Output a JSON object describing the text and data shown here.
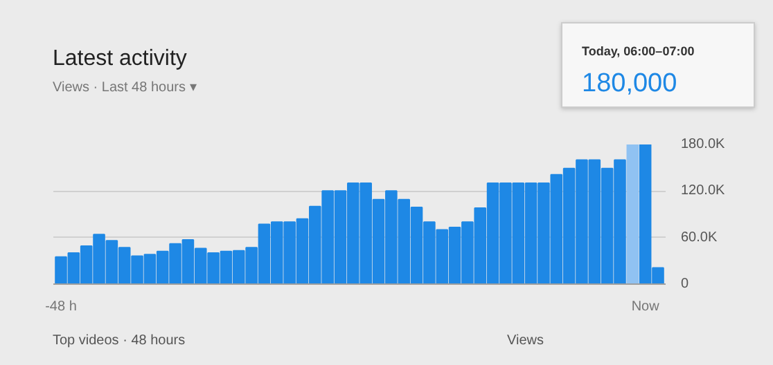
{
  "chart_data": {
    "type": "bar",
    "title": "Latest activity",
    "subtitle": "Views · Last 48 hours ▾",
    "categories": [
      "-48 h",
      null,
      null,
      null,
      null,
      null,
      null,
      null,
      null,
      null,
      null,
      null,
      null,
      null,
      null,
      null,
      null,
      null,
      null,
      null,
      null,
      null,
      null,
      null,
      null,
      null,
      null,
      null,
      null,
      null,
      null,
      null,
      null,
      null,
      null,
      null,
      null,
      null,
      null,
      null,
      null,
      null,
      null,
      null,
      null,
      null,
      "Now",
      null
    ],
    "values": [
      35000,
      40000,
      49000,
      64000,
      56000,
      47000,
      36000,
      38000,
      42000,
      52000,
      57000,
      46000,
      40000,
      42000,
      43000,
      47000,
      77000,
      80000,
      80000,
      84000,
      100000,
      120000,
      120000,
      130000,
      130000,
      109000,
      120000,
      109000,
      99000,
      80000,
      70000,
      73000,
      80000,
      98000,
      130000,
      130000,
      130000,
      130000,
      130000,
      141000,
      149000,
      160000,
      160000,
      149000,
      160000,
      180000,
      180000,
      21000
    ],
    "colors": [
      "#1e88e5",
      "#1e88e5",
      "#1e88e5",
      "#1e88e5",
      "#1e88e5",
      "#1e88e5",
      "#1e88e5",
      "#1e88e5",
      "#1e88e5",
      "#1e88e5",
      "#1e88e5",
      "#1e88e5",
      "#1e88e5",
      "#1e88e5",
      "#1e88e5",
      "#1e88e5",
      "#1e88e5",
      "#1e88e5",
      "#1e88e5",
      "#1e88e5",
      "#1e88e5",
      "#1e88e5",
      "#1e88e5",
      "#1e88e5",
      "#1e88e5",
      "#1e88e5",
      "#1e88e5",
      "#1e88e5",
      "#1e88e5",
      "#1e88e5",
      "#1e88e5",
      "#1e88e5",
      "#1e88e5",
      "#1e88e5",
      "#1e88e5",
      "#1e88e5",
      "#1e88e5",
      "#1e88e5",
      "#1e88e5",
      "#1e88e5",
      "#1e88e5",
      "#1e88e5",
      "#1e88e5",
      "#1e88e5",
      "#1e88e5",
      "#90c2f2",
      "#1e88e5",
      "#1e88e5"
    ],
    "ylim": [
      0,
      180000
    ],
    "yticks": [
      0,
      {
        "value": 60000,
        "label": "60.0K"
      },
      {
        "value": 120000,
        "label": "120.0K"
      },
      {
        "value": 180000,
        "label": "180.0K"
      }
    ],
    "grid": "y",
    "annotations": [
      "Today, 06:00–07:00",
      "180,000",
      "Top videos · 48 hours",
      "Views"
    ]
  }
}
